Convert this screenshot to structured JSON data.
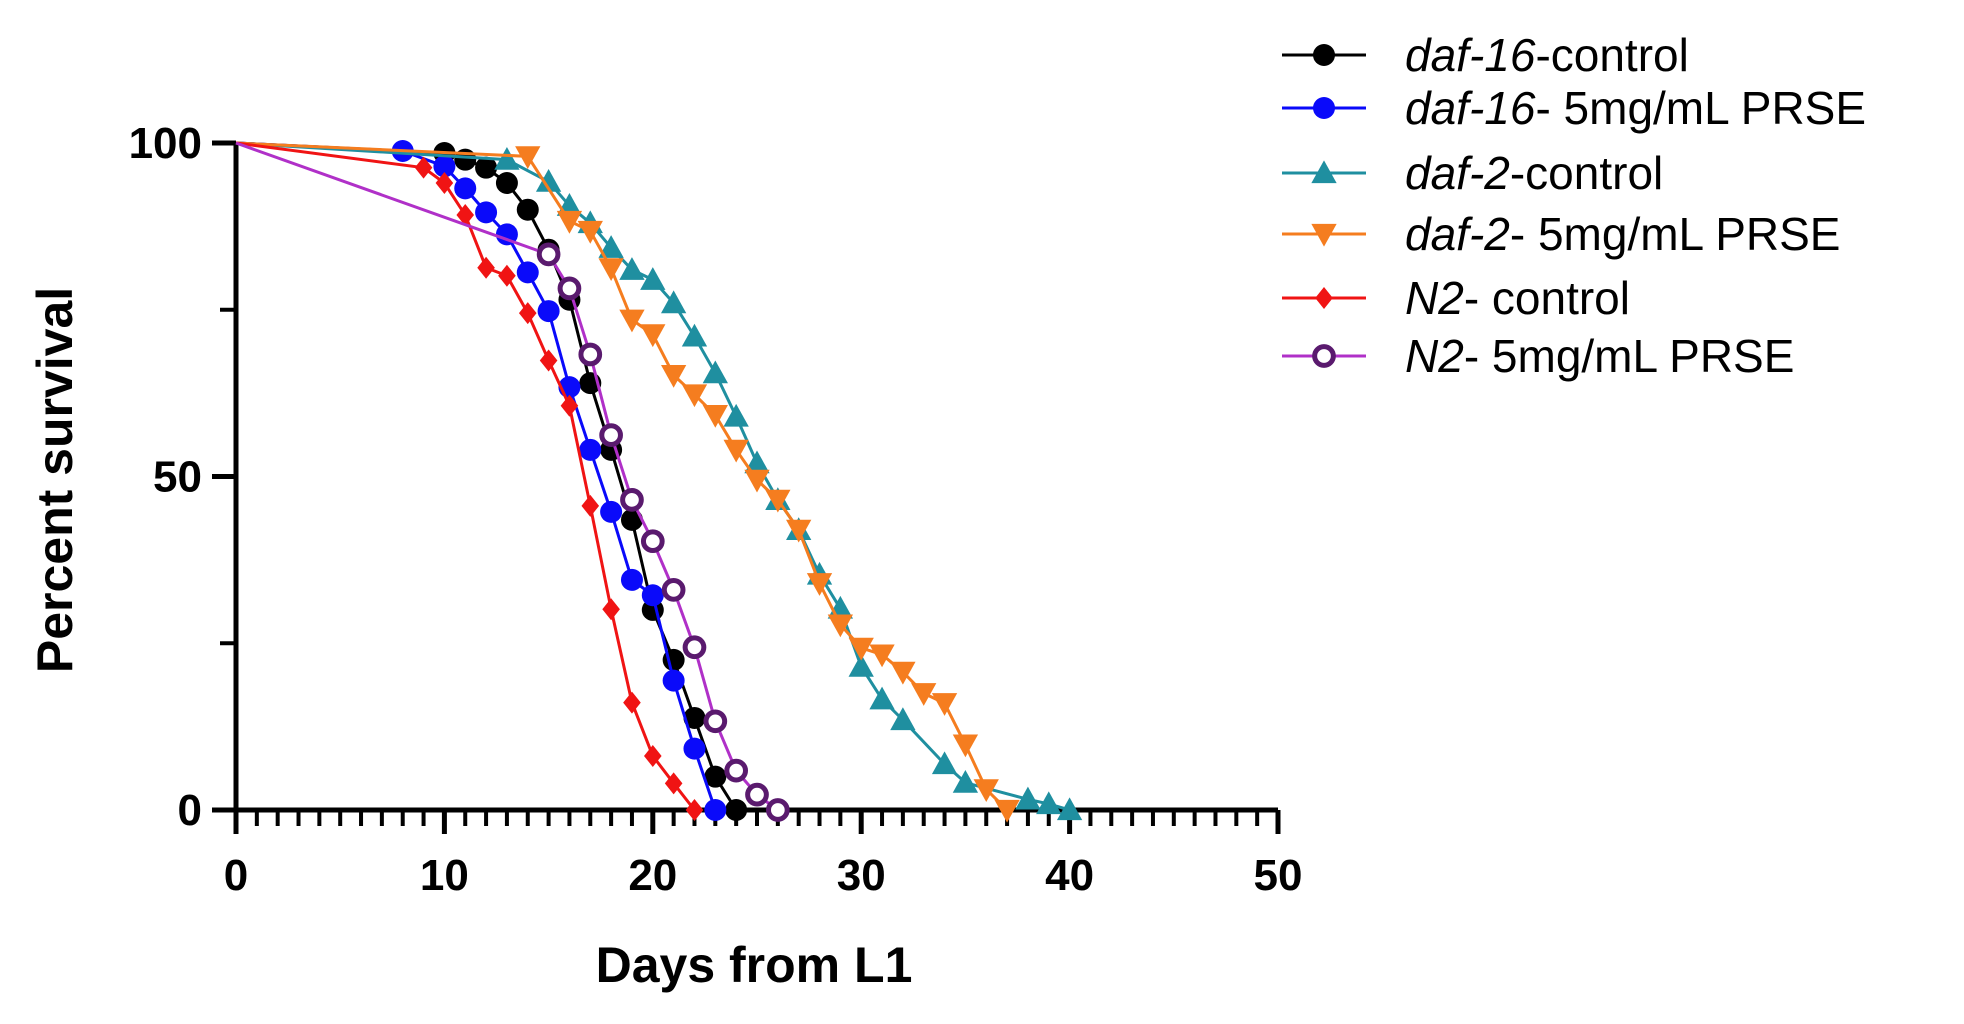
{
  "chart_data": {
    "type": "line",
    "title": "",
    "xlabel": "Days from L1",
    "ylabel": "Percent survival",
    "xlim": [
      0,
      50
    ],
    "ylim": [
      0,
      100
    ],
    "x_ticks": [
      0,
      10,
      20,
      30,
      40,
      50
    ],
    "y_ticks": [
      0,
      50,
      100
    ],
    "grid": false,
    "legend_position": "top-right",
    "series": [
      {
        "name": "daf-16-control",
        "legend_italic": "daf-16",
        "legend_rest": "-control",
        "color": "#000000",
        "marker": "circle",
        "x": [
          0,
          10,
          11,
          12,
          13,
          14,
          15,
          16,
          17,
          18,
          19,
          20,
          21,
          22,
          23,
          24
        ],
        "y": [
          100,
          98.5,
          97.5,
          96.3,
          94,
          90,
          84,
          76.5,
          64,
          54,
          43.5,
          30,
          22.5,
          13.8,
          5,
          0
        ]
      },
      {
        "name": "daf-16- 5mg/mL PRSE",
        "legend_italic": "daf-16",
        "legend_rest": "- 5mg/mL PRSE",
        "color": "#0a0afa",
        "marker": "circle",
        "x": [
          0,
          8,
          10,
          11,
          12,
          13,
          14,
          15,
          16,
          17,
          18,
          19,
          20,
          21,
          22,
          23
        ],
        "y": [
          100,
          98.8,
          96.5,
          93.2,
          89.6,
          86.3,
          80.6,
          74.8,
          63.4,
          54,
          44.7,
          34.5,
          32.2,
          19.4,
          9.2,
          0
        ]
      },
      {
        "name": "daf-2-control",
        "legend_italic": "daf-2",
        "legend_rest": "-control",
        "color": "#1f8fa0",
        "marker": "triangle-up",
        "x": [
          0,
          13,
          15,
          16,
          17,
          18,
          19,
          20,
          21,
          22,
          23,
          24,
          25,
          26,
          27,
          28,
          29,
          30,
          31,
          32,
          34,
          35,
          38,
          39,
          40
        ],
        "y": [
          100,
          97.5,
          94.2,
          90.6,
          88,
          84.3,
          81,
          79.5,
          76,
          71,
          65.5,
          59,
          52,
          46.5,
          42,
          35.3,
          30.2,
          21.5,
          16.6,
          13.5,
          6.9,
          4.1,
          1.6,
          0.9,
          0
        ]
      },
      {
        "name": "daf-2- 5mg/mL PRSE",
        "legend_italic": "daf-2",
        "legend_rest": "- 5mg/mL PRSE",
        "color": "#f57d1f",
        "marker": "triangle-down",
        "x": [
          0,
          14,
          16,
          17,
          18,
          19,
          20,
          21,
          22,
          23,
          24,
          25,
          26,
          27,
          28,
          29,
          30,
          31,
          32,
          33,
          34,
          35,
          36,
          37
        ],
        "y": [
          100,
          98,
          88.3,
          86.8,
          81.2,
          73.5,
          71.3,
          65.2,
          62.3,
          59.2,
          54,
          49.5,
          46.5,
          42,
          34,
          27.8,
          24.3,
          23.3,
          20.7,
          17.5,
          16,
          9.8,
          3.1,
          0
        ]
      },
      {
        "name": "N2- control",
        "legend_italic": "N2",
        "legend_rest": "- control",
        "color": "#f01414",
        "marker": "diamond",
        "x": [
          0,
          9,
          10,
          11,
          12,
          13,
          14,
          15,
          16,
          17,
          18,
          19,
          20,
          21,
          22
        ],
        "y": [
          100,
          96.3,
          94,
          89.2,
          81.3,
          80.1,
          74.5,
          67.4,
          60.6,
          45.6,
          30.1,
          16.1,
          8.1,
          4,
          0
        ]
      },
      {
        "name": "N2- 5mg/mL PRSE",
        "legend_italic": "N2",
        "legend_rest": "- 5mg/mL PRSE",
        "color": "#b030c8",
        "marker_color": "#5a1a6e",
        "marker": "open-circle",
        "x": [
          0,
          15,
          16,
          17,
          18,
          19,
          20,
          21,
          22,
          23,
          24,
          25,
          26
        ],
        "y": [
          100,
          83.3,
          78.2,
          68.3,
          56.2,
          46.5,
          40.3,
          33,
          24.4,
          13.3,
          5.9,
          2.3,
          0
        ]
      }
    ]
  }
}
